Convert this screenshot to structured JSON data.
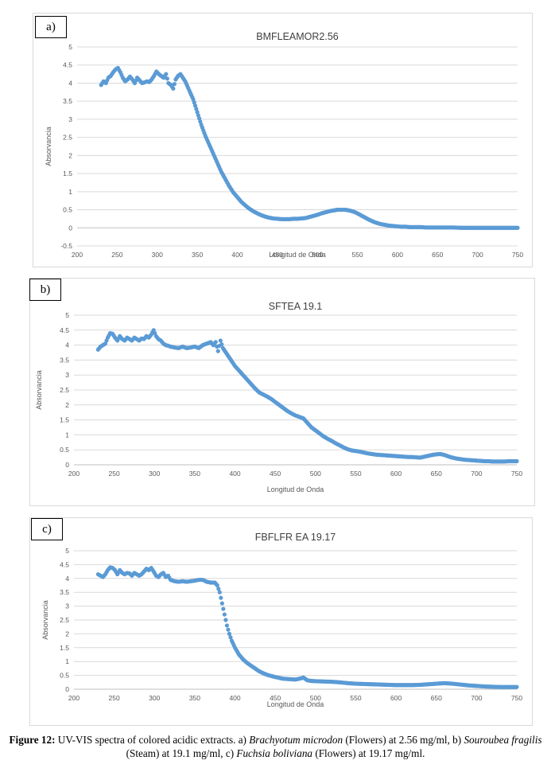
{
  "chart_data": [
    {
      "panel": "a)",
      "type": "scatter",
      "title": "BMFLEAMOR2.56",
      "xlabel": "Longitud de Onda",
      "ylabel": "Absorvancia",
      "xlim": [
        200,
        750
      ],
      "ylim": [
        -0.5,
        5
      ],
      "xticks": [
        200,
        250,
        300,
        350,
        400,
        450,
        500,
        550,
        600,
        650,
        700,
        750
      ],
      "yticks": [
        -0.5,
        0,
        0.5,
        1,
        1.5,
        2,
        2.5,
        3,
        3.5,
        4,
        4.5,
        5
      ],
      "ytick_labels": [
        "-0.5",
        "0",
        "0.5",
        "1",
        "1.5",
        "2",
        "2.5",
        "3",
        "3.5",
        "4",
        "4.5",
        "5"
      ],
      "grid": true,
      "color": "#5b9bd5",
      "series": [
        {
          "x": [
            230,
            233,
            236,
            239,
            242,
            245,
            248,
            251,
            254,
            257,
            260,
            263,
            266,
            269,
            272,
            275,
            278,
            281,
            284,
            287,
            290,
            293,
            296,
            299,
            302,
            305,
            308,
            311,
            314,
            317,
            320,
            323,
            326,
            329,
            332,
            335,
            340,
            345,
            350,
            355,
            360,
            365,
            370,
            375,
            380,
            385,
            390,
            395,
            400,
            405,
            410,
            415,
            420,
            425,
            430,
            435,
            440,
            445,
            450,
            455,
            460,
            465,
            470,
            475,
            480,
            485,
            490,
            495,
            500,
            505,
            510,
            515,
            520,
            525,
            530,
            535,
            540,
            545,
            550,
            555,
            560,
            565,
            570,
            575,
            580,
            585,
            590,
            595,
            600,
            605,
            610,
            615,
            620,
            625,
            630,
            635,
            640,
            645,
            650,
            660,
            670,
            680,
            690,
            700,
            710,
            720,
            730,
            740,
            750
          ],
          "y": [
            3.95,
            4.05,
            4.0,
            4.15,
            4.2,
            4.3,
            4.38,
            4.42,
            4.3,
            4.15,
            4.05,
            4.1,
            4.18,
            4.1,
            4.0,
            4.15,
            4.08,
            4.0,
            4.02,
            4.05,
            4.03,
            4.1,
            4.2,
            4.32,
            4.25,
            4.2,
            4.15,
            4.25,
            4.0,
            3.95,
            3.85,
            4.1,
            4.2,
            4.25,
            4.15,
            4.05,
            3.8,
            3.55,
            3.2,
            2.85,
            2.55,
            2.3,
            2.05,
            1.8,
            1.55,
            1.35,
            1.15,
            0.98,
            0.85,
            0.72,
            0.62,
            0.53,
            0.46,
            0.4,
            0.35,
            0.31,
            0.28,
            0.26,
            0.25,
            0.24,
            0.24,
            0.24,
            0.25,
            0.25,
            0.26,
            0.27,
            0.3,
            0.33,
            0.36,
            0.4,
            0.43,
            0.46,
            0.48,
            0.5,
            0.5,
            0.5,
            0.48,
            0.45,
            0.4,
            0.34,
            0.28,
            0.22,
            0.17,
            0.13,
            0.1,
            0.08,
            0.06,
            0.05,
            0.04,
            0.03,
            0.03,
            0.02,
            0.02,
            0.02,
            0.02,
            0.01,
            0.01,
            0.01,
            0.01,
            0.01,
            0.01,
            0.0,
            0.0,
            0.0,
            0.0,
            0.0,
            0.0,
            0.0,
            0.0
          ]
        }
      ]
    },
    {
      "panel": "b)",
      "type": "scatter",
      "title": "SFTEA 19.1",
      "xlabel": "Longitud de Onda",
      "ylabel": "Absorvancia",
      "xlim": [
        200,
        750
      ],
      "ylim": [
        0,
        5
      ],
      "xticks": [
        200,
        250,
        300,
        350,
        400,
        450,
        500,
        550,
        600,
        650,
        700,
        750
      ],
      "yticks": [
        0,
        0.5,
        1,
        1.5,
        2,
        2.5,
        3,
        3.5,
        4,
        4.5,
        5
      ],
      "ytick_labels": [
        "0",
        "0.5",
        "1",
        "1.5",
        "2",
        "2.5",
        "3",
        "3.5",
        "4",
        "4.5",
        "5"
      ],
      "grid": true,
      "color": "#5b9bd5",
      "series": [
        {
          "x": [
            230,
            233,
            236,
            239,
            242,
            245,
            248,
            251,
            254,
            257,
            260,
            263,
            266,
            269,
            272,
            275,
            278,
            281,
            284,
            287,
            290,
            293,
            296,
            299,
            302,
            305,
            308,
            311,
            314,
            317,
            320,
            325,
            330,
            335,
            340,
            345,
            350,
            355,
            360,
            365,
            370,
            373,
            376,
            379,
            382,
            385,
            390,
            395,
            400,
            405,
            410,
            415,
            420,
            425,
            430,
            435,
            440,
            445,
            450,
            455,
            460,
            465,
            470,
            475,
            480,
            485,
            490,
            495,
            500,
            505,
            510,
            515,
            520,
            525,
            530,
            535,
            540,
            545,
            550,
            555,
            560,
            565,
            570,
            575,
            580,
            585,
            590,
            595,
            600,
            605,
            610,
            615,
            620,
            625,
            630,
            635,
            640,
            645,
            650,
            655,
            660,
            665,
            670,
            675,
            680,
            685,
            690,
            695,
            700,
            705,
            710,
            715,
            720,
            725,
            730,
            735,
            740,
            745,
            750
          ],
          "y": [
            3.85,
            3.95,
            4.0,
            4.05,
            4.25,
            4.4,
            4.38,
            4.25,
            4.15,
            4.3,
            4.2,
            4.15,
            4.25,
            4.2,
            4.15,
            4.25,
            4.2,
            4.15,
            4.22,
            4.2,
            4.3,
            4.25,
            4.35,
            4.5,
            4.3,
            4.2,
            4.15,
            4.05,
            4.0,
            3.98,
            3.95,
            3.92,
            3.9,
            3.95,
            3.9,
            3.92,
            3.95,
            3.9,
            4.0,
            4.05,
            4.1,
            4.0,
            4.1,
            3.8,
            4.15,
            3.9,
            3.7,
            3.5,
            3.3,
            3.15,
            3.0,
            2.85,
            2.7,
            2.55,
            2.42,
            2.35,
            2.28,
            2.2,
            2.1,
            2.0,
            1.9,
            1.8,
            1.72,
            1.65,
            1.6,
            1.55,
            1.4,
            1.25,
            1.15,
            1.05,
            0.95,
            0.87,
            0.8,
            0.72,
            0.65,
            0.58,
            0.52,
            0.48,
            0.46,
            0.44,
            0.41,
            0.38,
            0.36,
            0.34,
            0.33,
            0.32,
            0.31,
            0.3,
            0.29,
            0.28,
            0.27,
            0.26,
            0.26,
            0.25,
            0.24,
            0.27,
            0.3,
            0.33,
            0.35,
            0.36,
            0.33,
            0.28,
            0.24,
            0.21,
            0.19,
            0.17,
            0.16,
            0.15,
            0.14,
            0.13,
            0.12,
            0.12,
            0.11,
            0.11,
            0.11,
            0.11,
            0.12,
            0.12,
            0.12
          ]
        }
      ]
    },
    {
      "panel": "c)",
      "type": "scatter",
      "title": "FBFLFR EA 19.17",
      "xlabel": "Longitud de Onda",
      "ylabel": "Absorvancia",
      "xlim": [
        200,
        750
      ],
      "ylim": [
        0,
        5
      ],
      "xticks": [
        200,
        250,
        300,
        350,
        400,
        450,
        500,
        550,
        600,
        650,
        700,
        750
      ],
      "yticks": [
        0,
        0.5,
        1,
        1.5,
        2,
        2.5,
        3,
        3.5,
        4,
        4.5,
        5
      ],
      "ytick_labels": [
        "0",
        "0.5",
        "1",
        "1.5",
        "2",
        "2.5",
        "3",
        "3.5",
        "4",
        "4.5",
        "5"
      ],
      "grid": true,
      "color": "#5b9bd5",
      "series": [
        {
          "x": [
            230,
            233,
            236,
            239,
            242,
            245,
            248,
            251,
            254,
            257,
            260,
            263,
            266,
            269,
            272,
            275,
            278,
            281,
            284,
            287,
            290,
            293,
            296,
            299,
            302,
            305,
            308,
            311,
            314,
            317,
            320,
            325,
            330,
            335,
            340,
            345,
            350,
            355,
            360,
            365,
            370,
            375,
            378,
            381,
            384,
            387,
            390,
            393,
            396,
            400,
            405,
            410,
            415,
            420,
            425,
            430,
            435,
            440,
            445,
            450,
            455,
            460,
            465,
            470,
            475,
            480,
            485,
            490,
            495,
            500,
            510,
            520,
            530,
            540,
            550,
            560,
            570,
            580,
            590,
            600,
            610,
            620,
            630,
            640,
            650,
            660,
            670,
            680,
            690,
            700,
            710,
            720,
            730,
            740,
            750
          ],
          "y": [
            4.15,
            4.1,
            4.05,
            4.15,
            4.3,
            4.4,
            4.38,
            4.3,
            4.15,
            4.3,
            4.2,
            4.15,
            4.2,
            4.18,
            4.1,
            4.2,
            4.15,
            4.1,
            4.15,
            4.25,
            4.35,
            4.3,
            4.38,
            4.25,
            4.1,
            4.05,
            4.15,
            4.2,
            4.05,
            4.1,
            3.95,
            3.9,
            3.88,
            3.9,
            3.88,
            3.9,
            3.92,
            3.95,
            3.95,
            3.88,
            3.85,
            3.85,
            3.75,
            3.5,
            3.1,
            2.7,
            2.3,
            2.0,
            1.75,
            1.5,
            1.25,
            1.08,
            0.95,
            0.85,
            0.75,
            0.65,
            0.58,
            0.52,
            0.48,
            0.44,
            0.41,
            0.38,
            0.37,
            0.36,
            0.35,
            0.38,
            0.42,
            0.32,
            0.3,
            0.29,
            0.28,
            0.27,
            0.25,
            0.22,
            0.2,
            0.19,
            0.18,
            0.17,
            0.16,
            0.15,
            0.15,
            0.15,
            0.16,
            0.18,
            0.2,
            0.22,
            0.2,
            0.17,
            0.14,
            0.12,
            0.1,
            0.09,
            0.08,
            0.08,
            0.08
          ]
        }
      ]
    }
  ],
  "caption": {
    "label": "Figure 12:",
    "part1": " UV-VIS spectra of colored acidic extracts. a) ",
    "species_a": "Brachyotum microdon",
    "part2": " (Flowers) at 2.56 mg/ml, b) ",
    "species_b": "Souroubea fragilis",
    "part3": " (Steam) at 19.1 mg/ml, c) ",
    "species_c": "Fuchsia boliviana",
    "part4": " (Flowers) at 19.17 mg/ml."
  }
}
